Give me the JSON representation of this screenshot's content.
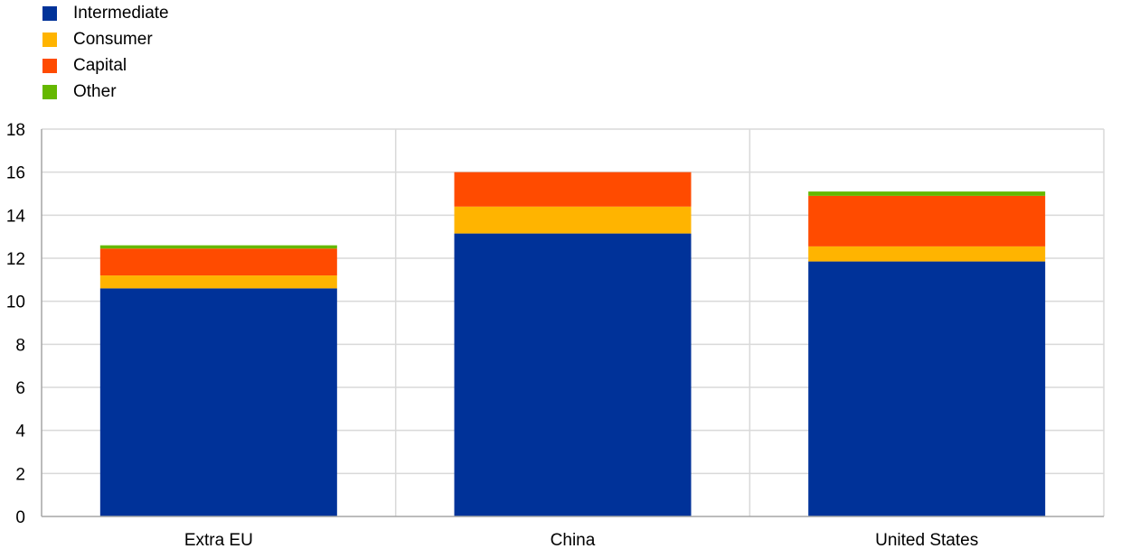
{
  "chart_data": {
    "type": "bar",
    "stacked": true,
    "categories": [
      "Extra EU",
      "China",
      "United States"
    ],
    "series": [
      {
        "name": "Intermediate",
        "color": "#003299",
        "values": [
          10.6,
          13.15,
          11.85
        ]
      },
      {
        "name": "Consumer",
        "color": "#FFB400",
        "values": [
          0.6,
          1.25,
          0.7
        ]
      },
      {
        "name": "Capital",
        "color": "#FF4B00",
        "values": [
          1.25,
          1.6,
          2.35
        ]
      },
      {
        "name": "Other",
        "color": "#65B800",
        "values": [
          0.15,
          0.0,
          0.2
        ]
      }
    ],
    "ylim": [
      0,
      18
    ],
    "yticks": [
      0,
      2,
      4,
      6,
      8,
      10,
      12,
      14,
      16,
      18
    ],
    "grid": true,
    "legend_position": "top-left"
  }
}
